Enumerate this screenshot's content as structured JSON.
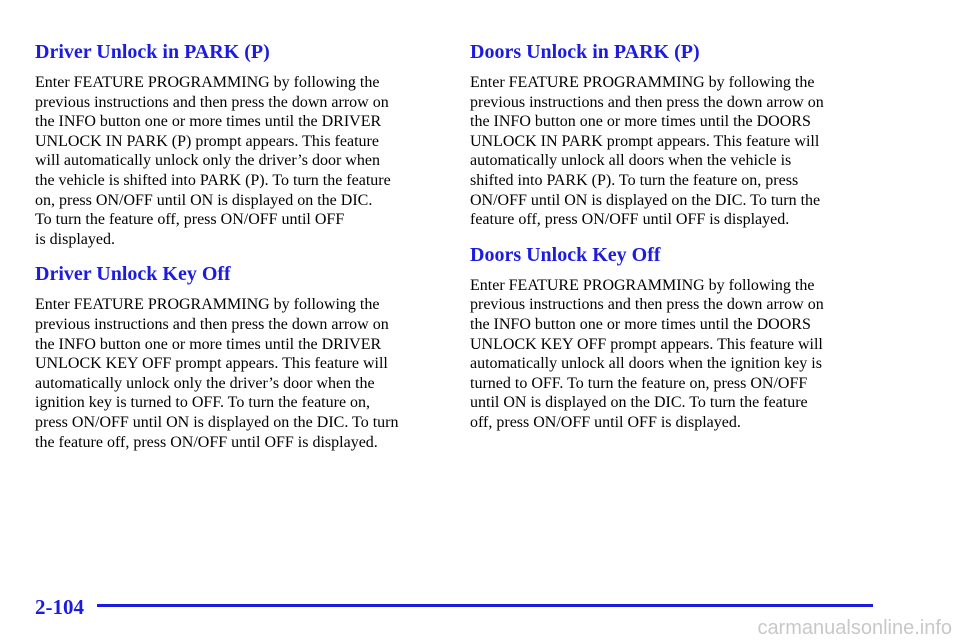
{
  "columns": [
    {
      "sections": [
        {
          "heading": "Driver Unlock in PARK (P)",
          "lines": [
            "Enter FEATURE PROGRAMMING by following the",
            "previous instructions and then press the down arrow on",
            "the INFO button one or more times until the DRIVER",
            "UNLOCK IN PARK (P) prompt appears. This feature",
            "will automatically unlock only the driver’s door when",
            "the vehicle is shifted into PARK (P). To turn the feature",
            "on, press ON/OFF until ON is displayed on the DIC.",
            "To turn the feature off, press ON/OFF until OFF",
            "is displayed."
          ]
        },
        {
          "heading": "Driver Unlock Key Off",
          "lines": [
            "Enter FEATURE PROGRAMMING by following the",
            "previous instructions and then press the down arrow on",
            "the INFO button one or more times until the DRIVER",
            "UNLOCK KEY OFF prompt appears. This feature will",
            "automatically unlock only the driver’s door when the",
            "ignition key is turned to OFF. To turn the feature on,",
            "press ON/OFF until ON is displayed on the DIC. To turn",
            "the feature off, press ON/OFF until OFF is displayed."
          ]
        }
      ]
    },
    {
      "sections": [
        {
          "heading": "Doors Unlock in PARK (P)",
          "lines": [
            "Enter FEATURE PROGRAMMING by following the",
            "previous instructions and then press the down arrow on",
            "the INFO button one or more times until the DOORS",
            "UNLOCK IN PARK prompt appears. This feature will",
            "automatically unlock all doors when the vehicle is",
            "shifted into PARK (P). To turn the feature on, press",
            "ON/OFF until ON is displayed on the DIC. To turn the",
            "feature off, press ON/OFF until OFF is displayed."
          ]
        },
        {
          "heading": "Doors Unlock Key Off",
          "lines": [
            "Enter FEATURE PROGRAMMING by following the",
            "previous instructions and then press the down arrow on",
            "the INFO button one or more times until the DOORS",
            "UNLOCK KEY OFF prompt appears. This feature will",
            "automatically unlock all doors when the ignition key is",
            "turned to OFF. To turn the feature on, press ON/OFF",
            "until ON is displayed on the DIC. To turn the feature",
            "off, press ON/OFF until OFF is displayed."
          ]
        }
      ]
    }
  ],
  "footer": {
    "page_number": "2-104",
    "watermark": "carmanualsonline.info"
  }
}
